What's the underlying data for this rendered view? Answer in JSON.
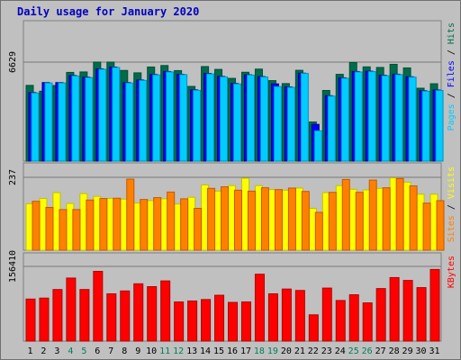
{
  "chart_data": {
    "type": "bar",
    "title": "Daily usage for January 2020",
    "categories": [
      "1",
      "2",
      "3",
      "4",
      "5",
      "6",
      "7",
      "8",
      "9",
      "10",
      "11",
      "12",
      "13",
      "14",
      "15",
      "16",
      "17",
      "18",
      "19",
      "20",
      "21",
      "22",
      "23",
      "24",
      "25",
      "26",
      "27",
      "28",
      "29",
      "30",
      "31"
    ],
    "weekend_days": [
      "4",
      "5",
      "11",
      "12",
      "18",
      "19",
      "25",
      "26"
    ],
    "panels": [
      {
        "id": "hits-files-pages",
        "max_label": "6629",
        "ylim": [
          0,
          6629
        ],
        "side_label": [
          "Pages",
          "Files",
          "Hits"
        ],
        "series": [
          {
            "name": "Hits",
            "color": "#006c4a",
            "values": [
              5070,
              4680,
              5060,
              5940,
              5970,
              6630,
              6630,
              6070,
              5910,
              6300,
              6400,
              6060,
              5000,
              6330,
              6140,
              5540,
              5950,
              6160,
              5390,
              5190,
              6080,
              2620,
              4730,
              5810,
              6600,
              6310,
              6270,
              6480,
              6240,
              4880,
              5180
            ]
          },
          {
            "name": "Files",
            "color": "#0000ff",
            "values": [
              4590,
              5260,
              5260,
              5730,
              5620,
              6180,
              6300,
              5260,
              5430,
              5800,
              6000,
              5810,
              4770,
              5870,
              5670,
              5200,
              5780,
              5660,
              5170,
              4970,
              5890,
              2460,
              4380,
              5580,
              6000,
              6020,
              5750,
              5820,
              5650,
              4710,
              4760
            ]
          },
          {
            "name": "Pages",
            "color": "#00ccff",
            "values": [
              4560,
              5230,
              5230,
              5700,
              5590,
              6150,
              6270,
              5230,
              5400,
              5770,
              5970,
              5790,
              4740,
              5840,
              5640,
              5170,
              5760,
              5630,
              4990,
              4940,
              5870,
              2030,
              4350,
              5550,
              5970,
              5990,
              5720,
              5790,
              5620,
              4680,
              4730
            ]
          }
        ]
      },
      {
        "id": "visits-sites",
        "max_label": "237",
        "ylim": [
          0,
          237
        ],
        "side_label": [
          "Sites",
          "Visits"
        ],
        "series": [
          {
            "name": "Visits",
            "color": "#ffff00",
            "values": [
              151,
              168,
              187,
              152,
              184,
              175,
              168,
              166,
              153,
              161,
              167,
              150,
              172,
              212,
              192,
              210,
              234,
              210,
              197,
              195,
              202,
              136,
              187,
              210,
              198,
              196,
              201,
              235,
              221,
              182,
              182
            ]
          },
          {
            "name": "Sites",
            "color": "#ff8000",
            "values": [
              159,
              139,
              132,
              132,
              163,
              168,
              169,
              231,
              165,
              171,
              189,
              167,
              136,
              201,
              206,
              195,
              192,
              203,
              197,
              202,
              191,
              123,
              188,
              230,
              188,
              228,
              203,
              233,
              209,
              153,
              161
            ]
          }
        ]
      },
      {
        "id": "kbytes",
        "max_label": "156410",
        "ylim": [
          0,
          156410
        ],
        "side_label": [
          "KBytes"
        ],
        "series": [
          {
            "name": "KBytes",
            "color": "#ff0000",
            "values": [
              88000,
              90000,
              108000,
              132000,
              108000,
              146000,
              99000,
              105000,
              120000,
              114000,
              126000,
              82000,
              84000,
              87000,
              96000,
              81000,
              82000,
              140000,
              99000,
              109000,
              106000,
              55000,
              111000,
              85000,
              97000,
              80000,
              110000,
              133000,
              127000,
              112000,
              150000
            ]
          }
        ]
      }
    ]
  }
}
